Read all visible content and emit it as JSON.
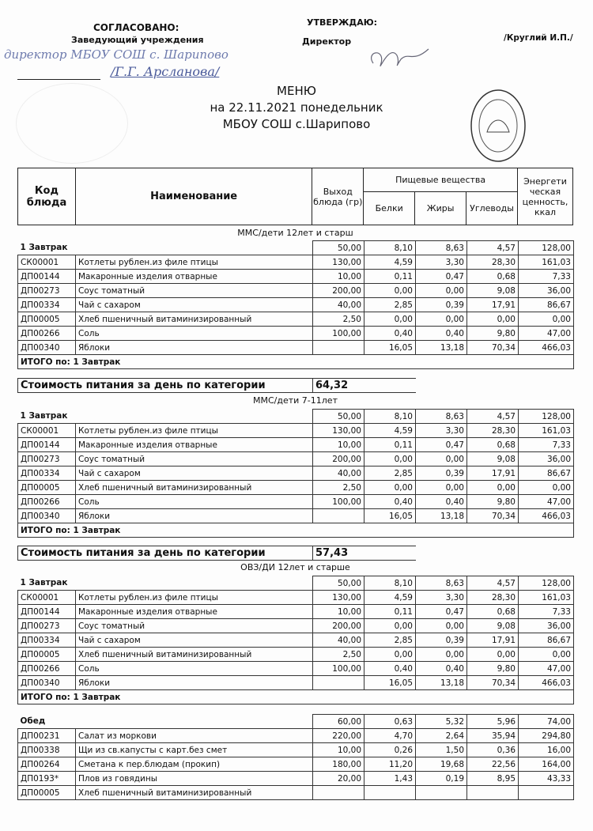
{
  "header": {
    "agreed": "СОГЛАСОВАНО:",
    "agreed_role": "Заведующий  учреждения",
    "agreed_handwritten": "директор МБОУ СОШ с. Шарипово",
    "agreed_name": "/Г.Г. Арсланова/",
    "approve": "УТВЕРЖДАЮ:",
    "approve_role": "Директор",
    "approve_name": "/Круглий И.П./",
    "title": "МЕНЮ",
    "date_line": "на 22.11.2021  понедельник",
    "school": "МБОУ СОШ с.Шарипово"
  },
  "columns": {
    "code": "Код блюда",
    "name": "Наименование",
    "yield": "Выход блюда (гр)",
    "nutrients": "Пищевые вещества",
    "protein": "Белки",
    "fat": "Жиры",
    "carbs": "Углеводы",
    "energy": "Энергети ческая ценность, ккал"
  },
  "sections": [
    {
      "title": "ММС/дети 12лет и старш",
      "meals": [
        {
          "label": "1 Завтрак",
          "rows": [
            [
              "",
              "1 Завтрак",
              "50,00",
              "8,10",
              "8,63",
              "4,57",
              "128,00"
            ],
            [
              "СК00001",
              "Котлеты рублен.из филе птицы",
              "130,00",
              "4,59",
              "3,30",
              "28,30",
              "161,03"
            ],
            [
              "ДП00144",
              "Макаронные изделия отварные",
              "10,00",
              "0,11",
              "0,47",
              "0,68",
              "7,33"
            ],
            [
              "ДП00273",
              "Соус томатный",
              "200,00",
              "0,00",
              "0,00",
              "9,08",
              "36,00"
            ],
            [
              "ДП00334",
              "Чай с сахаром",
              "40,00",
              "2,85",
              "0,39",
              "17,91",
              "86,67"
            ],
            [
              "ДП00005",
              "Хлеб пшеничный витаминизированный",
              "2,50",
              "0,00",
              "0,00",
              "0,00",
              "0,00"
            ],
            [
              "ДП00266",
              "Соль",
              "100,00",
              "0,40",
              "0,40",
              "9,80",
              "47,00"
            ],
            [
              "ДП00340",
              "Яблоки",
              "",
              "16,05",
              "13,18",
              "70,34",
              "466,03"
            ]
          ],
          "total": "ИТОГО по: 1 Завтрак"
        }
      ],
      "cost_label": "Стоимость питания за день по категории",
      "cost": "64,32"
    },
    {
      "title": "ММС/дети 7-11лет",
      "meals": [
        {
          "label": "1 Завтрак",
          "rows": [
            [
              "",
              "1 Завтрак",
              "50,00",
              "8,10",
              "8,63",
              "4,57",
              "128,00"
            ],
            [
              "СК00001",
              "Котлеты рублен.из филе птицы",
              "130,00",
              "4,59",
              "3,30",
              "28,30",
              "161,03"
            ],
            [
              "ДП00144",
              "Макаронные изделия отварные",
              "10,00",
              "0,11",
              "0,47",
              "0,68",
              "7,33"
            ],
            [
              "ДП00273",
              "Соус томатный",
              "200,00",
              "0,00",
              "0,00",
              "9,08",
              "36,00"
            ],
            [
              "ДП00334",
              "Чай с сахаром",
              "40,00",
              "2,85",
              "0,39",
              "17,91",
              "86,67"
            ],
            [
              "ДП00005",
              "Хлеб пшеничный витаминизированный",
              "2,50",
              "0,00",
              "0,00",
              "0,00",
              "0,00"
            ],
            [
              "ДП00266",
              "Соль",
              "100,00",
              "0,40",
              "0,40",
              "9,80",
              "47,00"
            ],
            [
              "ДП00340",
              "Яблоки",
              "",
              "16,05",
              "13,18",
              "70,34",
              "466,03"
            ]
          ],
          "total": "ИТОГО по: 1 Завтрак"
        }
      ],
      "cost_label": "Стоимость питания за день по категории",
      "cost": "57,43"
    },
    {
      "title": "ОВЗ/ДИ 12лет и старше",
      "meals": [
        {
          "label": "1 Завтрак",
          "rows": [
            [
              "",
              "1 Завтрак",
              "50,00",
              "8,10",
              "8,63",
              "4,57",
              "128,00"
            ],
            [
              "СК00001",
              "Котлеты рублен.из филе птицы",
              "130,00",
              "4,59",
              "3,30",
              "28,30",
              "161,03"
            ],
            [
              "ДП00144",
              "Макаронные изделия отварные",
              "10,00",
              "0,11",
              "0,47",
              "0,68",
              "7,33"
            ],
            [
              "ДП00273",
              "Соус томатный",
              "200,00",
              "0,00",
              "0,00",
              "9,08",
              "36,00"
            ],
            [
              "ДП00334",
              "Чай с сахаром",
              "40,00",
              "2,85",
              "0,39",
              "17,91",
              "86,67"
            ],
            [
              "ДП00005",
              "Хлеб пшеничный витаминизированный",
              "2,50",
              "0,00",
              "0,00",
              "0,00",
              "0,00"
            ],
            [
              "ДП00266",
              "Соль",
              "100,00",
              "0,40",
              "0,40",
              "9,80",
              "47,00"
            ],
            [
              "ДП00340",
              "Яблоки",
              "",
              "16,05",
              "13,18",
              "70,34",
              "466,03"
            ]
          ],
          "total": "ИТОГО по: 1 Завтрак"
        },
        {
          "label": "Обед",
          "rows": [
            [
              "",
              "Обед",
              "60,00",
              "0,63",
              "5,32",
              "5,96",
              "74,00"
            ],
            [
              "ДП00231",
              "Салат из моркови",
              "220,00",
              "4,70",
              "2,64",
              "35,94",
              "294,80"
            ],
            [
              "ДП00338",
              "Щи из св.капусты с карт.без смет",
              "10,00",
              "0,26",
              "1,50",
              "0,36",
              "16,00"
            ],
            [
              "ДП00264",
              "Сметана к пер.блюдам (прокип)",
              "180,00",
              "11,20",
              "19,68",
              "22,56",
              "164,00"
            ],
            [
              "ДП0193*",
              "Плов из говядины",
              "20,00",
              "1,43",
              "0,19",
              "8,95",
              "43,33"
            ],
            [
              "ДП00005",
              "Хлеб пшеничный витаминизированный",
              "",
              "",
              "",
              "",
              ""
            ]
          ]
        }
      ]
    }
  ]
}
